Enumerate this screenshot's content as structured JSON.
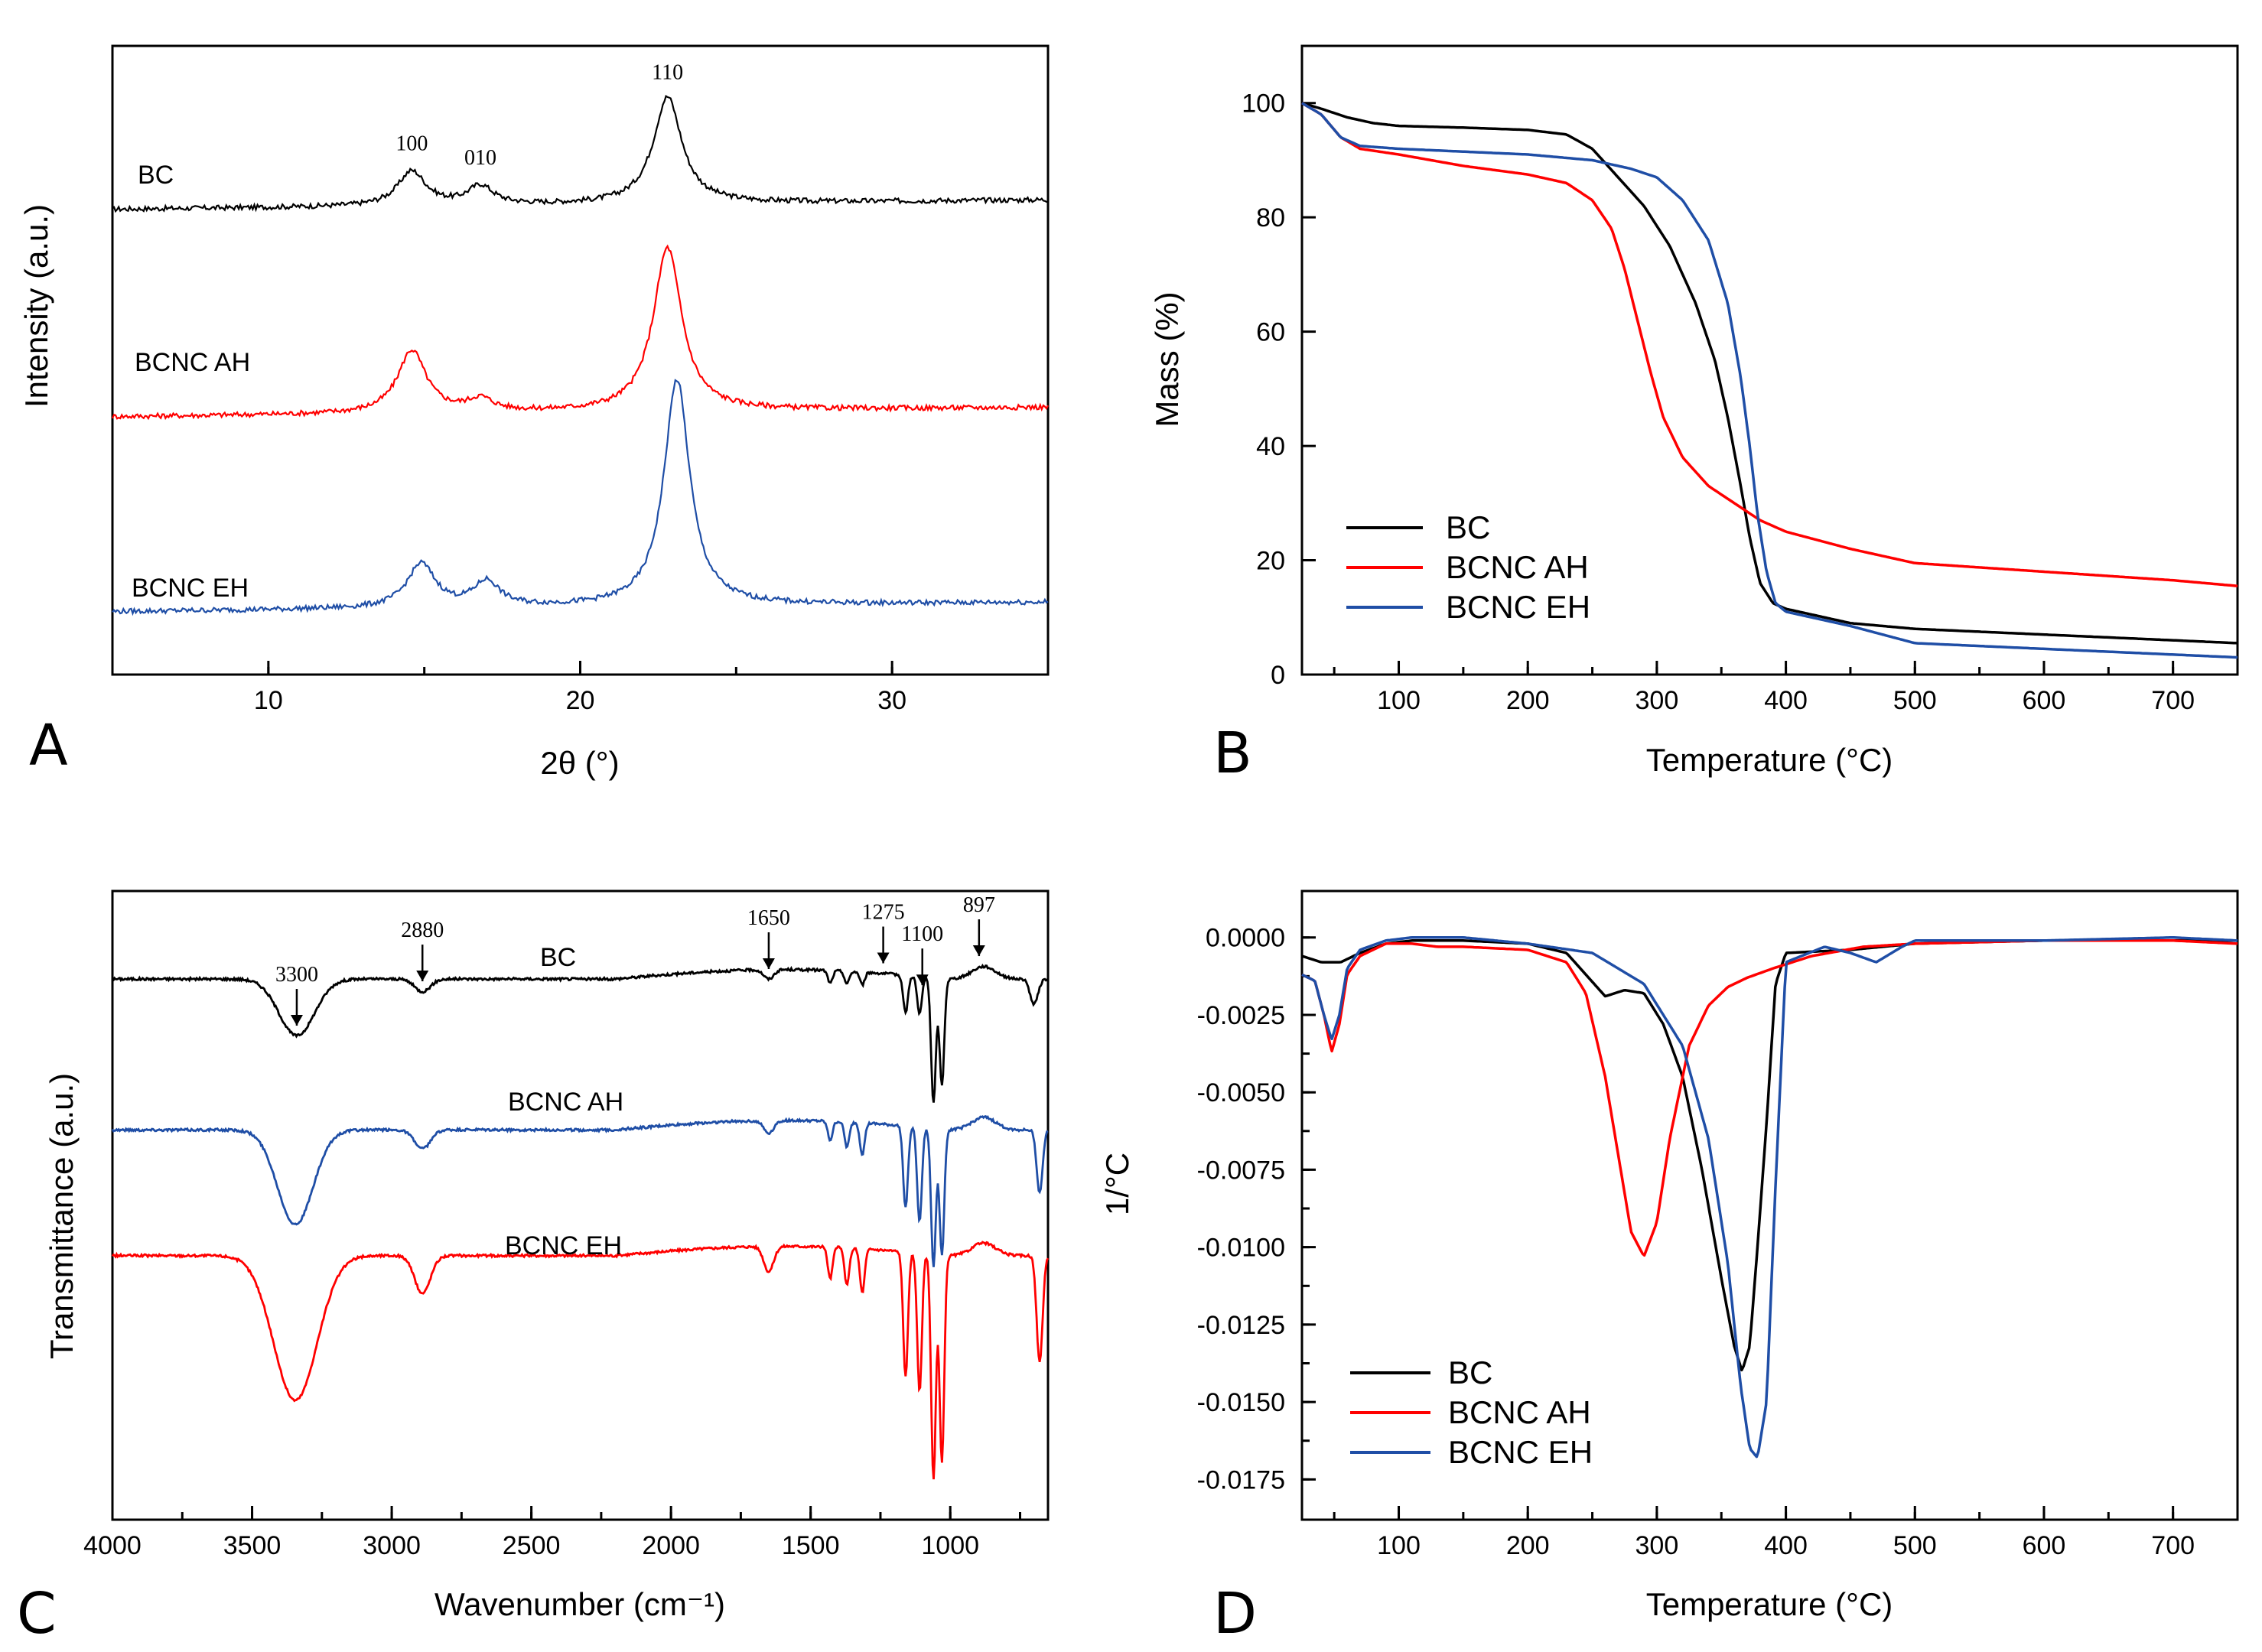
{
  "chart_data": [
    {
      "panel": "A",
      "type": "line",
      "title": "",
      "xlabel": "2θ (°)",
      "ylabel": "Intensity (a.u.)",
      "xlim": [
        5,
        35
      ],
      "xticks": [
        10,
        20,
        30
      ],
      "grid": false,
      "series": [
        {
          "name": "BC",
          "color": "#000000",
          "base": 0.74,
          "peaks": [
            [
              14.6,
              0.055,
              0.55
            ],
            [
              16.8,
              0.03,
              0.5
            ],
            [
              22.8,
              0.17,
              0.55
            ]
          ]
        },
        {
          "name": "BCNC AH",
          "color": "#ff0000",
          "base": 0.41,
          "peaks": [
            [
              14.6,
              0.1,
              0.55
            ],
            [
              16.8,
              0.02,
              0.5
            ],
            [
              22.8,
              0.26,
              0.55
            ]
          ]
        },
        {
          "name": "BCNC EH",
          "color": "#1f4ea6",
          "base": 0.1,
          "peaks": [
            [
              14.9,
              0.07,
              0.55
            ],
            [
              17.0,
              0.04,
              0.5
            ],
            [
              23.1,
              0.36,
              0.5
            ]
          ]
        }
      ],
      "curve_labels": [
        "BC",
        "BCNC AH",
        "BCNC EH"
      ],
      "annotations": [
        {
          "text": "100",
          "x": 14.6
        },
        {
          "text": "010",
          "x": 16.8
        },
        {
          "text": "110",
          "x": 22.8
        }
      ]
    },
    {
      "panel": "B",
      "type": "line",
      "title": "",
      "xlabel": "Temperature (°C)",
      "ylabel": "Mass (%)",
      "xlim": [
        25,
        750
      ],
      "ylim": [
        0,
        110
      ],
      "xticks": [
        100,
        200,
        300,
        400,
        500,
        600,
        700
      ],
      "yticks": [
        0,
        20,
        40,
        60,
        80,
        100
      ],
      "legend": "bottom-left",
      "grid": false,
      "series": [
        {
          "name": "BC",
          "color": "#000000",
          "x": [
            25,
            40,
            60,
            80,
            100,
            150,
            200,
            230,
            250,
            270,
            290,
            310,
            330,
            345,
            355,
            365,
            372,
            380,
            390,
            400,
            450,
            500,
            600,
            700,
            750
          ],
          "y": [
            100,
            99,
            97.5,
            96.5,
            96,
            95.7,
            95.3,
            94.5,
            92,
            87,
            82,
            75,
            65,
            55,
            45,
            33,
            24,
            16,
            12.5,
            11.5,
            9,
            8,
            7,
            6,
            5.5
          ]
        },
        {
          "name": "BCNC AH",
          "color": "#ff0000",
          "x": [
            25,
            40,
            55,
            70,
            100,
            150,
            200,
            230,
            250,
            265,
            275,
            285,
            295,
            305,
            320,
            340,
            360,
            380,
            400,
            450,
            500,
            600,
            700,
            750
          ],
          "y": [
            100,
            98,
            94,
            92,
            91,
            89,
            87.5,
            86,
            83,
            78,
            71,
            62,
            53,
            45,
            38,
            33,
            30,
            27,
            25,
            22,
            19.5,
            18,
            16.5,
            15.5
          ]
        },
        {
          "name": "BCNC EH",
          "color": "#1f4ea6",
          "x": [
            25,
            40,
            55,
            70,
            100,
            150,
            200,
            250,
            280,
            300,
            320,
            340,
            355,
            365,
            372,
            378,
            385,
            392,
            400,
            450,
            500,
            600,
            700,
            750
          ],
          "y": [
            100,
            98,
            94,
            92.5,
            92,
            91.5,
            91,
            90,
            88.5,
            87,
            83,
            76,
            65,
            52,
            40,
            28,
            18,
            12.5,
            11,
            8.5,
            5.5,
            4.5,
            3.5,
            3
          ]
        }
      ]
    },
    {
      "panel": "C",
      "type": "line",
      "title": "",
      "xlabel": "Wavenumber (cm⁻¹)",
      "ylabel": "Transmittance (a.u.)",
      "xlim": [
        4000,
        650
      ],
      "xticks": [
        4000,
        3500,
        3000,
        2500,
        2000,
        1500,
        1000
      ],
      "grid": false,
      "series": [
        {
          "name": "BC",
          "color": "#000000",
          "base": 0.86,
          "dips": [
            [
              3340,
              0.09,
              90
            ],
            [
              2890,
              0.02,
              40
            ],
            [
              1650,
              0.015,
              25
            ],
            [
              1430,
              0.02,
              12
            ],
            [
              1370,
              0.02,
              12
            ],
            [
              1315,
              0.02,
              12
            ],
            [
              1160,
              0.06,
              12
            ],
            [
              1110,
              0.06,
              12
            ],
            [
              1060,
              0.2,
              12
            ],
            [
              1030,
              0.17,
              12
            ],
            [
              700,
              0.04,
              20
            ]
          ]
        },
        {
          "name": "BCNC AH",
          "color": "#1f4ea6",
          "base": 0.62,
          "dips": [
            [
              3345,
              0.15,
              90
            ],
            [
              2890,
              0.03,
              40
            ],
            [
              1650,
              0.02,
              25
            ],
            [
              1430,
              0.03,
              12
            ],
            [
              1370,
              0.04,
              12
            ],
            [
              1315,
              0.05,
              12
            ],
            [
              1160,
              0.13,
              12
            ],
            [
              1110,
              0.15,
              12
            ],
            [
              1060,
              0.22,
              12
            ],
            [
              1030,
              0.2,
              12
            ],
            [
              680,
              0.1,
              15
            ]
          ]
        },
        {
          "name": "BCNC EH",
          "color": "#ff0000",
          "base": 0.42,
          "dips": [
            [
              3345,
              0.23,
              110
            ],
            [
              2890,
              0.06,
              40
            ],
            [
              1650,
              0.04,
              25
            ],
            [
              1430,
              0.05,
              12
            ],
            [
              1370,
              0.06,
              12
            ],
            [
              1315,
              0.07,
              12
            ],
            [
              1160,
              0.2,
              12
            ],
            [
              1110,
              0.22,
              12
            ],
            [
              1060,
              0.36,
              12
            ],
            [
              1030,
              0.33,
              12
            ],
            [
              680,
              0.17,
              15
            ]
          ]
        }
      ],
      "curve_labels": [
        "BC",
        "BCNC AH",
        "BCNC EH"
      ],
      "annotations": [
        {
          "text": "3300",
          "x": 3340
        },
        {
          "text": "2880",
          "x": 2890
        },
        {
          "text": "1650",
          "x": 1650
        },
        {
          "text": "1275",
          "x": 1240
        },
        {
          "text": "1100",
          "x": 1100
        },
        {
          "text": "897",
          "x": 897
        }
      ]
    },
    {
      "panel": "D",
      "type": "line",
      "title": "",
      "xlabel": "Temperature (°C)",
      "ylabel": "1/°C",
      "xlim": [
        25,
        750
      ],
      "ylim": [
        -0.0188,
        0.0015
      ],
      "xticks": [
        100,
        200,
        300,
        400,
        500,
        600,
        700
      ],
      "yticks": [
        0.0,
        -0.0025,
        -0.005,
        -0.0075,
        -0.01,
        -0.0125,
        -0.015,
        -0.0175
      ],
      "ytick_labels": [
        "0.0000",
        "-0.0025",
        "-0.0050",
        "-0.0075",
        "-0.0100",
        "-0.0125",
        "-0.0150",
        "-0.0175"
      ],
      "legend": "bottom-left",
      "grid": false,
      "series": [
        {
          "name": "BC",
          "color": "#000000",
          "x": [
            25,
            40,
            55,
            70,
            90,
            110,
            150,
            200,
            230,
            245,
            260,
            275,
            290,
            305,
            320,
            335,
            350,
            360,
            366,
            372,
            378,
            385,
            392,
            400,
            450,
            500,
            600,
            700,
            750
          ],
          "y": [
            -0.0006,
            -0.0008,
            -0.0008,
            -0.0005,
            -0.0002,
            -0.0001,
            -0.0001,
            -0.0002,
            -0.0005,
            -0.0012,
            -0.0019,
            -0.0017,
            -0.0018,
            -0.0028,
            -0.0045,
            -0.0075,
            -0.011,
            -0.0132,
            -0.014,
            -0.0132,
            -0.01,
            -0.006,
            -0.0015,
            -0.0005,
            -0.0004,
            -0.0002,
            -0.0001,
            -0.0001,
            -0.0001
          ]
        },
        {
          "name": "BCNC AH",
          "color": "#ff0000",
          "x": [
            25,
            35,
            42,
            48,
            54,
            60,
            70,
            90,
            110,
            130,
            150,
            200,
            230,
            245,
            260,
            270,
            280,
            290,
            300,
            310,
            325,
            340,
            355,
            370,
            390,
            420,
            460,
            500,
            600,
            700,
            750
          ],
          "y": [
            -0.0012,
            -0.0014,
            -0.0025,
            -0.0037,
            -0.0028,
            -0.0012,
            -0.0006,
            -0.0002,
            -0.0002,
            -0.0003,
            -0.0003,
            -0.0004,
            -0.0008,
            -0.0018,
            -0.0045,
            -0.007,
            -0.0095,
            -0.0103,
            -0.0092,
            -0.0065,
            -0.0035,
            -0.0022,
            -0.0016,
            -0.0013,
            -0.001,
            -0.0006,
            -0.0003,
            -0.0002,
            -0.0001,
            -0.0001,
            -0.0002
          ]
        },
        {
          "name": "BCNC EH",
          "color": "#1f4ea6",
          "x": [
            25,
            35,
            42,
            48,
            54,
            60,
            70,
            90,
            110,
            150,
            200,
            250,
            290,
            320,
            340,
            355,
            365,
            372,
            378,
            385,
            392,
            400,
            430,
            450,
            470,
            490,
            500,
            600,
            700,
            750
          ],
          "y": [
            -0.0012,
            -0.0014,
            -0.0025,
            -0.0033,
            -0.0025,
            -0.001,
            -0.0004,
            -0.0001,
            0.0,
            0.0,
            -0.0002,
            -0.0005,
            -0.0015,
            -0.0035,
            -0.0065,
            -0.0105,
            -0.0145,
            -0.0165,
            -0.0168,
            -0.015,
            -0.008,
            -0.0008,
            -0.0003,
            -0.0005,
            -0.0008,
            -0.0003,
            -0.0001,
            -0.0001,
            0.0,
            -0.0001
          ]
        }
      ]
    }
  ],
  "panel_labels": {
    "A": "A",
    "B": "B",
    "C": "C",
    "D": "D"
  }
}
